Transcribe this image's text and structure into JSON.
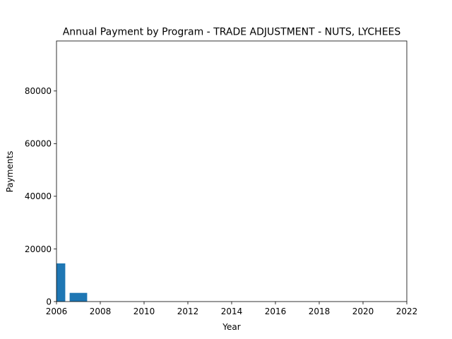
{
  "chart_data": {
    "type": "bar",
    "title": "Annual Payment by Program - TRADE ADJUSTMENT - NUTS, LYCHEES",
    "xlabel": "Year",
    "ylabel": "Payments",
    "xlim": [
      2006,
      2022
    ],
    "ylim": [
      0,
      99000
    ],
    "xticks": [
      "2006",
      "2008",
      "2010",
      "2012",
      "2014",
      "2016",
      "2018",
      "2020",
      "2022"
    ],
    "yticks": [
      "0",
      "20000",
      "40000",
      "60000",
      "80000"
    ],
    "bar_width_years": 0.8,
    "series": [
      {
        "x": [
          2006,
          2007
        ],
        "values": [
          14500,
          3300
        ],
        "color": "#1f77b4"
      }
    ],
    "grid": false,
    "legend": "none"
  }
}
